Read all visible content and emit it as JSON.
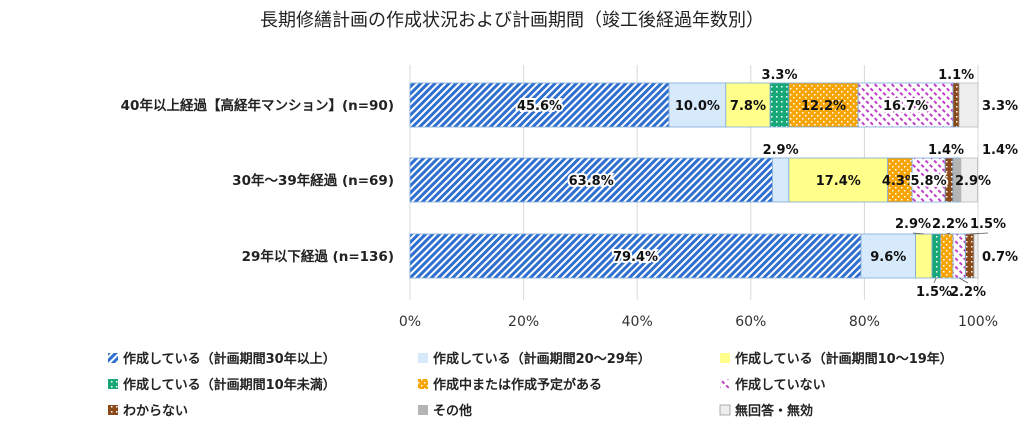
{
  "chart_data": {
    "type": "bar",
    "orientation": "horizontal",
    "stacked": true,
    "title": "長期修繕計画の作成状況および計画期間（竣工後経過年数別）",
    "categories": [
      "40年以上経過【高経年マンション】(n=90)",
      "30年〜39年経過 (n=69)",
      "29年以下経過 (n=136)"
    ],
    "series": [
      {
        "name": "作成している（計画期間30年以上）",
        "color": "#2e6fd0",
        "pattern": "diag-stripes",
        "values": [
          45.6,
          63.8,
          79.4
        ]
      },
      {
        "name": "作成している（計画期間20〜29年）",
        "color": "#d6eafb",
        "pattern": "solid",
        "values": [
          10.0,
          2.9,
          9.6
        ]
      },
      {
        "name": "作成している（計画期間10〜19年）",
        "color": "#ffff8a",
        "pattern": "solid",
        "values": [
          7.8,
          17.4,
          2.9
        ]
      },
      {
        "name": "作成している（計画期間10年未満）",
        "color": "#18a878",
        "pattern": "dots",
        "values": [
          3.3,
          0.0,
          1.5
        ]
      },
      {
        "name": "作成中または作成予定がある",
        "color": "#f5a400",
        "pattern": "dots",
        "values": [
          12.2,
          4.3,
          2.2
        ]
      },
      {
        "name": "作成していない",
        "color": "#c040c8",
        "pattern": "diag-dashes",
        "values": [
          16.7,
          5.8,
          2.2
        ]
      },
      {
        "name": "わからない",
        "color": "#8a4a1a",
        "pattern": "dots",
        "values": [
          1.1,
          1.4,
          1.5
        ]
      },
      {
        "name": "その他",
        "color": "#b4b4b4",
        "pattern": "solid",
        "values": [
          0.0,
          1.4,
          0.0
        ]
      },
      {
        "name": "無回答・無効",
        "color": "#eeeeee",
        "pattern": "solid",
        "values": [
          3.3,
          2.9,
          0.7
        ]
      }
    ],
    "data_labels": [
      [
        "45.6%",
        "10.0%",
        "7.8%",
        "3.3%",
        "12.2%",
        "16.7%",
        "1.1%",
        "",
        "3.3%"
      ],
      [
        "63.8%",
        "2.9%",
        "17.4%",
        "",
        "4.3%",
        "5.8%",
        "1.4%",
        "1.4%",
        "2.9%"
      ],
      [
        "79.4%",
        "9.6%",
        "2.9%",
        "1.5%",
        "2.2%",
        "2.2%",
        "1.5%",
        "",
        "0.7%"
      ]
    ],
    "x_ticks": [
      "0%",
      "20%",
      "40%",
      "60%",
      "80%",
      "100%"
    ],
    "xlim": [
      0,
      100
    ],
    "grid": true,
    "legend_position": "bottom"
  }
}
